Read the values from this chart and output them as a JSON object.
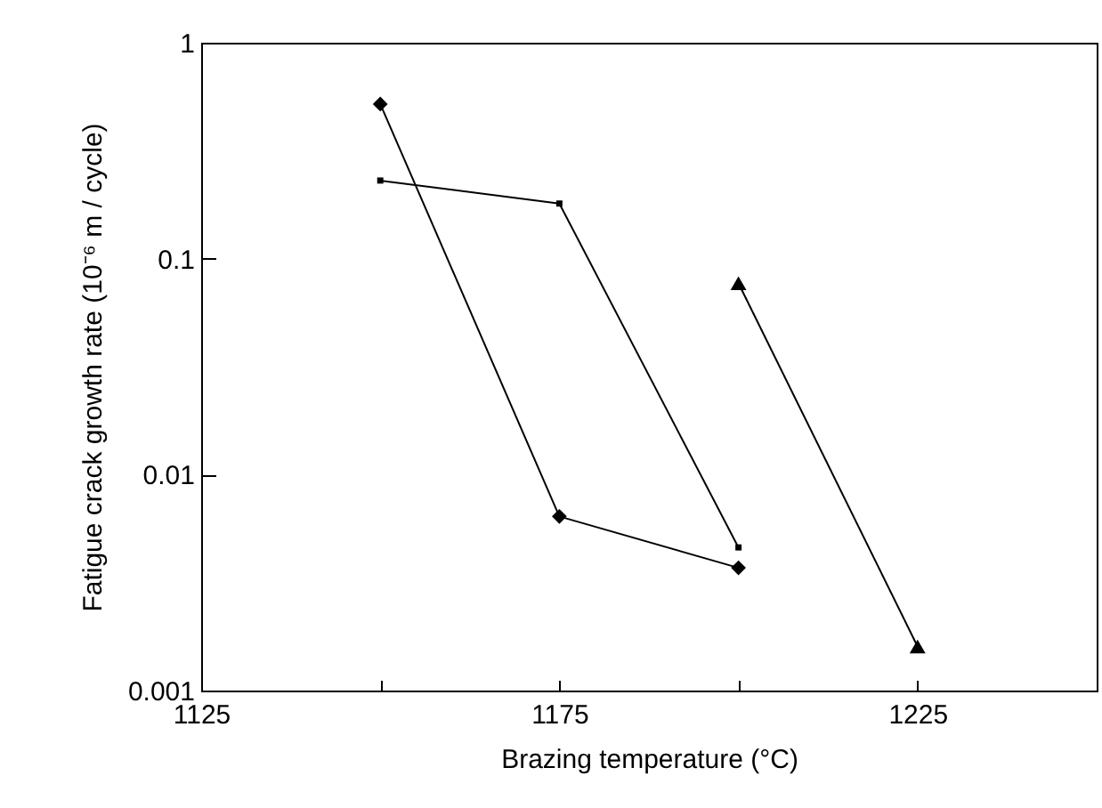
{
  "chart_data": {
    "type": "line",
    "xlabel": "Brazing temperature (°C)",
    "ylabel": "Fatigue crack growth rate (10⁻⁶ m / cycle)",
    "xlim": [
      1125,
      1250
    ],
    "xticks": [
      1125,
      {
        "value": 1150,
        "label": null
      },
      1175,
      {
        "value": 1200,
        "label": null
      },
      1225
    ],
    "ylim": [
      0.001,
      1
    ],
    "yticks": [
      0.001,
      0.01,
      0.1,
      1
    ],
    "log": "y",
    "grid": false,
    "series": [
      {
        "color": "#000000",
        "marker": "diamond",
        "x": [
          1150,
          1175,
          1200
        ],
        "values": [
          0.52,
          0.0064,
          0.0037
        ]
      },
      {
        "color": "#000000",
        "marker": "square",
        "x": [
          1150,
          1175,
          1200
        ],
        "values": [
          0.23,
          0.18,
          0.0046
        ]
      },
      {
        "color": "#000000",
        "marker": "triangle",
        "x": [
          1200,
          1225
        ],
        "values": [
          0.077,
          0.0016
        ]
      }
    ]
  }
}
